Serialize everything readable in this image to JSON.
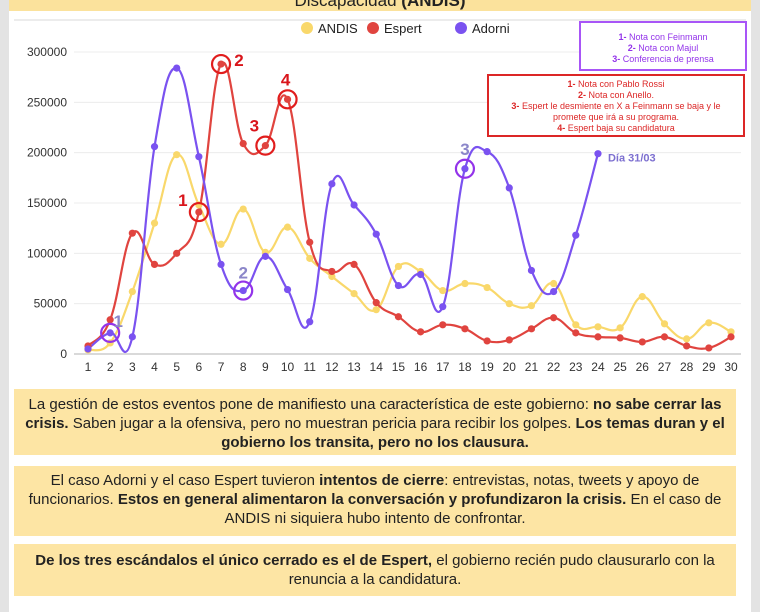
{
  "header": {
    "title_prefix": "Discapacidad",
    "title_bold": "(ANDIS)"
  },
  "notes": {
    "adorni": [
      {
        "num": "1-",
        "text": " Nota con Feinmann"
      },
      {
        "num": "2-",
        "text": " Nota con Majul"
      },
      {
        "num": "3-",
        "text": " Conferencia de prensa"
      }
    ],
    "espert": [
      {
        "num": "1-",
        "text": " Nota con Pablo Rossi"
      },
      {
        "num": "2-",
        "text": " Nota con Anello."
      },
      {
        "num": "3-",
        "text": " Espert le desmiente en X a Feinmann se baja y le promete que irá a su programa."
      },
      {
        "num": "4-",
        "text": " Espert baja su candidatura"
      }
    ]
  },
  "panels": [
    {
      "parts": [
        {
          "t": "La gestión de estos eventos pone de manifiesto una característica de este gobierno: ",
          "b": false
        },
        {
          "t": "no sabe cerrar las crisis.",
          "b": true
        },
        {
          "t": " Saben jugar a la ofensiva, pero no muestran pericia para recibir los golpes. ",
          "b": false
        },
        {
          "t": "Los temas duran y el gobierno los transita, pero no los clausura.",
          "b": true
        }
      ]
    },
    {
      "parts": [
        {
          "t": "El caso Adorni y el caso Espert tuvieron ",
          "b": false
        },
        {
          "t": "intentos de cierre",
          "b": true
        },
        {
          "t": ": entrevistas, notas, tweets y apoyo de funcionarios. ",
          "b": false
        },
        {
          "t": "Estos en general alimentaron la conversación y profundizaron la crisis.",
          "b": true
        },
        {
          "t": " En el caso de ANDIS ni siquiera hubo intento de confrontar.",
          "b": false
        }
      ]
    },
    {
      "parts": [
        {
          "t": "De los tres escándalos el único cerrado es el de Espert,",
          "b": true
        },
        {
          "t": " el gobierno recién pudo clausurarlo con la renuncia a la candidatura.",
          "b": false
        }
      ]
    }
  ],
  "chart_data": {
    "type": "line",
    "title": "Discapacidad (ANDIS)",
    "xlabel": "",
    "ylabel": "",
    "x": [
      1,
      2,
      3,
      4,
      5,
      6,
      7,
      8,
      9,
      10,
      11,
      12,
      13,
      14,
      15,
      16,
      17,
      18,
      19,
      20,
      21,
      22,
      23,
      24,
      25,
      26,
      27,
      28,
      29,
      30
    ],
    "ylim": [
      0,
      300000
    ],
    "yticks": [
      0,
      50000,
      100000,
      150000,
      200000,
      250000,
      300000
    ],
    "grid": true,
    "legend_position": "top-center",
    "series": [
      {
        "name": "ANDIS",
        "color": "#f9d86b",
        "values": [
          4000,
          11000,
          62000,
          130000,
          198000,
          148000,
          109000,
          144000,
          101000,
          126000,
          95000,
          77000,
          60000,
          44000,
          87000,
          82000,
          63000,
          70000,
          66000,
          50000,
          48000,
          70000,
          29000,
          27000,
          26000,
          57000,
          30000,
          15000,
          31000,
          22000
        ]
      },
      {
        "name": "Espert",
        "color": "#e0443f",
        "values": [
          8000,
          34000,
          120000,
          89000,
          100000,
          141000,
          288000,
          209000,
          207000,
          253000,
          111000,
          82000,
          89000,
          51000,
          37000,
          22000,
          29000,
          25000,
          13000,
          14000,
          25000,
          36000,
          21000,
          17000,
          16000,
          12000,
          17000,
          8000,
          6000,
          17000
        ]
      },
      {
        "name": "Adorni",
        "color": "#7a52f0",
        "values": [
          5000,
          21000,
          17000,
          206000,
          284000,
          196000,
          89000,
          63000,
          97000,
          64000,
          32000,
          169000,
          148000,
          119000,
          68000,
          79000,
          47000,
          184000,
          201000,
          165000,
          83000,
          62000,
          118000,
          199000,
          null,
          null,
          null,
          null,
          null,
          null
        ]
      }
    ],
    "annotations": [
      {
        "series": "Adorni",
        "x": 2,
        "label": "1",
        "color": "#9333ea",
        "label_color": "#8b86c9"
      },
      {
        "series": "Adorni",
        "x": 8,
        "label": "2",
        "color": "#9333ea",
        "label_color": "#8b86c9"
      },
      {
        "series": "Adorni",
        "x": 18,
        "label": "3",
        "color": "#9333ea",
        "label_color": "#8b86c9"
      },
      {
        "series": "Espert",
        "x": 6,
        "label": "1",
        "color": "#e11d1d",
        "label_color": "#d9151b"
      },
      {
        "series": "Espert",
        "x": 7,
        "label": "2",
        "color": "#e11d1d",
        "label_color": "#d9151b"
      },
      {
        "series": "Espert",
        "x": 9,
        "label": "3",
        "color": "#e11d1d",
        "label_color": "#d9151b"
      },
      {
        "series": "Espert",
        "x": 10,
        "label": "4",
        "color": "#e11d1d",
        "label_color": "#d9151b"
      }
    ],
    "end_label": {
      "series": "Adorni",
      "x": 24,
      "text": "Día 31/03",
      "color": "#7c6fd0"
    }
  }
}
